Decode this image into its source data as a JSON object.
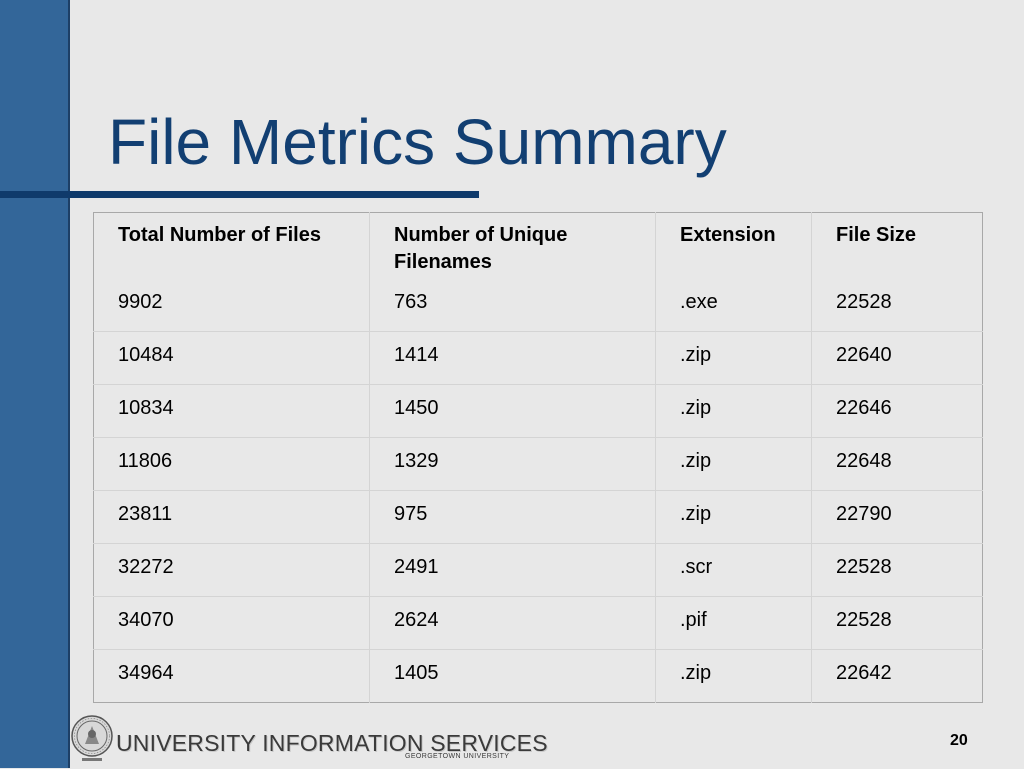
{
  "slide": {
    "title": "File Metrics Summary",
    "page_number": "20"
  },
  "table": {
    "headers": [
      "Total Number of Files",
      "Number of Unique Filenames",
      "Extension",
      "File Size"
    ],
    "rows": [
      [
        "9902",
        "763",
        ".exe",
        "22528"
      ],
      [
        "10484",
        "1414",
        ".zip",
        "22640"
      ],
      [
        "10834",
        "1450",
        ".zip",
        "22646"
      ],
      [
        "11806",
        "1329",
        ".zip",
        "22648"
      ],
      [
        "23811",
        "975",
        ".zip",
        "22790"
      ],
      [
        "32272",
        "2491",
        ".scr",
        "22528"
      ],
      [
        "34070",
        "2624",
        ".pif",
        "22528"
      ],
      [
        "34964",
        "1405",
        ".zip",
        "22642"
      ]
    ]
  },
  "footer": {
    "brand": "UNIVERSITY INFORMATION SERVICES",
    "subtitle": "GEORGETOWN UNIVERSITY",
    "seal_icon": "university-seal-icon"
  },
  "colors": {
    "background": "#e8e8e8",
    "sidebar": "#336699",
    "accent": "#0f3a6b",
    "title": "#123f72"
  }
}
